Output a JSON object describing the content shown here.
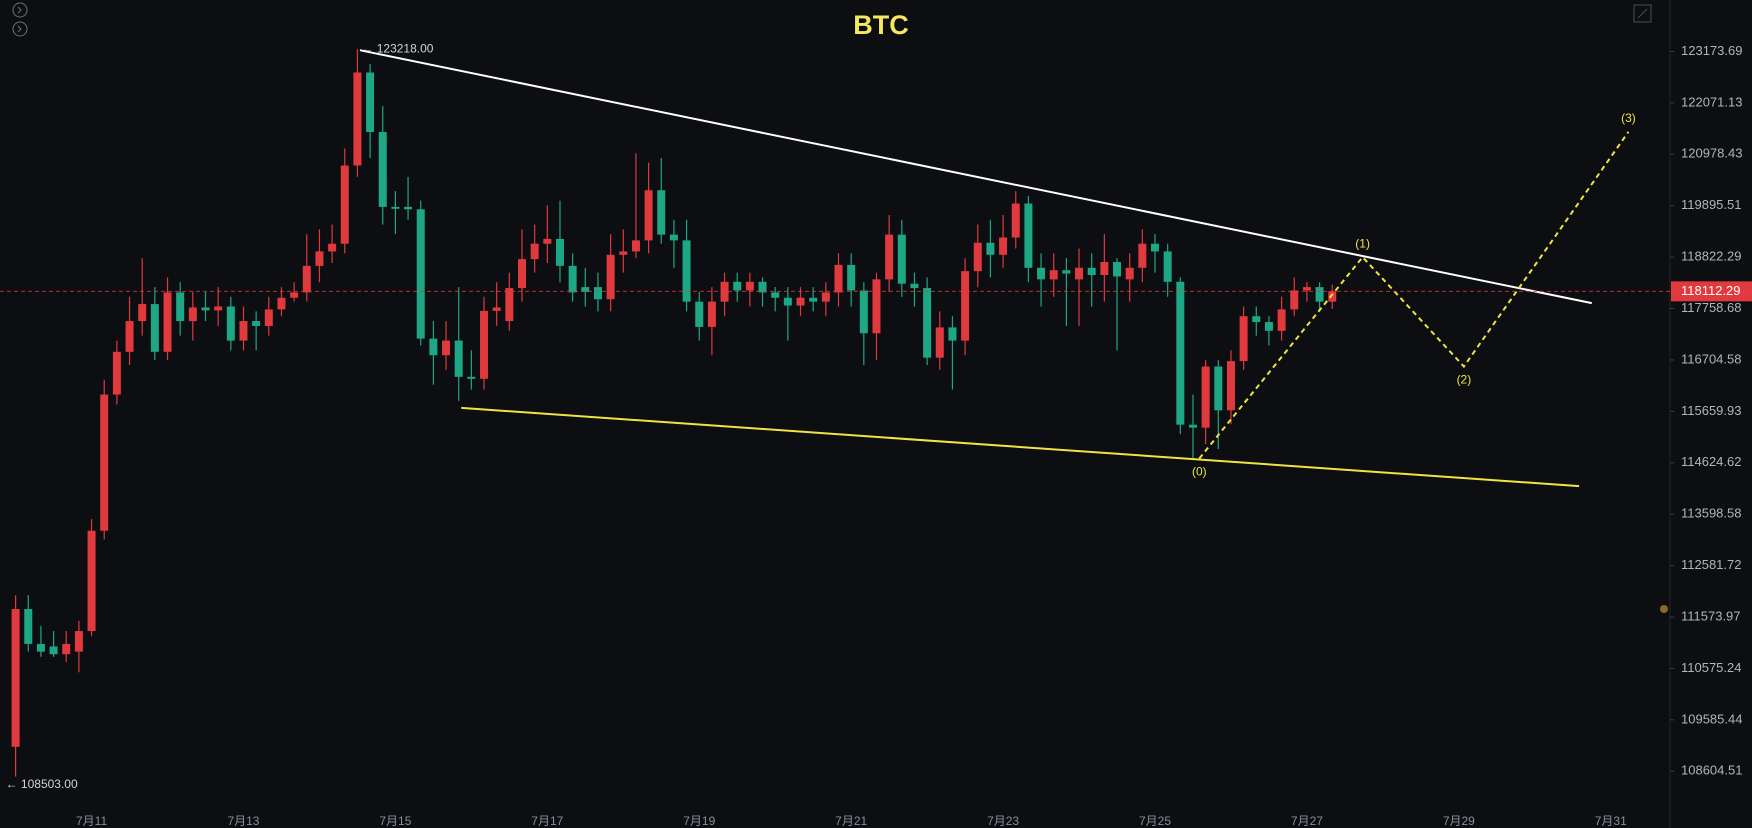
{
  "chart_data": {
    "type": "candlestick",
    "title": "BTC",
    "log_scale": true,
    "grid": false,
    "up_color": "#e0393e",
    "down_color": "#1ea784",
    "ylim": [
      107758,
      124286
    ],
    "yticks": [
      108604.51,
      109585.44,
      110575.24,
      111573.97,
      112581.72,
      113598.58,
      114624.62,
      115659.93,
      116704.58,
      117758.68,
      118822.29,
      119895.51,
      120978.43,
      122071.13,
      123173.69
    ],
    "categories": [
      null,
      null,
      null,
      null,
      null,
      null,
      "7月11",
      null,
      null,
      null,
      null,
      null,
      null,
      null,
      null,
      null,
      null,
      null,
      "7月13",
      null,
      null,
      null,
      null,
      null,
      null,
      null,
      null,
      null,
      null,
      null,
      "7月15",
      null,
      null,
      null,
      null,
      null,
      null,
      null,
      null,
      null,
      null,
      null,
      "7月17",
      null,
      null,
      null,
      null,
      null,
      null,
      null,
      null,
      null,
      null,
      null,
      "7月19",
      null,
      null,
      null,
      null,
      null,
      null,
      null,
      null,
      null,
      null,
      null,
      "7月21",
      null,
      null,
      null,
      null,
      null,
      null,
      null,
      null,
      null,
      null,
      null,
      "7月23",
      null,
      null,
      null,
      null,
      null,
      null,
      null,
      null,
      null,
      null,
      null,
      "7月25",
      null,
      null,
      null,
      null,
      null,
      null,
      null,
      null,
      null,
      null,
      null,
      "7月27",
      null,
      null,
      null,
      null,
      null,
      null,
      null,
      null,
      null,
      null,
      null,
      "7月29",
      null,
      null,
      null,
      null,
      null,
      null,
      null,
      null,
      null,
      null,
      null,
      "7月31",
      null,
      null,
      null,
      null
    ],
    "open": [
      109070,
      111730,
      111050,
      111000,
      110850,
      110900,
      111300,
      113270,
      116000,
      116870,
      117500,
      117850,
      116870,
      118090,
      117500,
      117780,
      117720,
      117800,
      117100,
      117500,
      117400,
      117740,
      117980,
      118090,
      118640,
      118940,
      119100,
      120740,
      122720,
      121450,
      119870,
      119870,
      119820,
      117140,
      116800,
      117100,
      116360,
      116320,
      117710,
      117500,
      118180,
      118780,
      119100,
      119200,
      118640,
      118200,
      118200,
      117950,
      118870,
      118940,
      119170,
      120220,
      119290,
      119170,
      117900,
      117380,
      117900,
      118310,
      118130,
      118310,
      118090,
      117980,
      117820,
      117980,
      117900,
      118090,
      118660,
      118130,
      117250,
      118360,
      119290,
      118270,
      118180,
      116750,
      117370,
      117100,
      118530,
      119120,
      118870,
      119230,
      119940,
      118600,
      118360,
      118550,
      118360,
      118600,
      118450,
      118720,
      118360,
      118600,
      119100,
      118940,
      118310,
      115390,
      115330,
      116570,
      115680,
      116680,
      117600,
      117480,
      117300,
      117740,
      118130,
      118200,
      117900,
      null,
      null,
      null,
      null,
      null,
      null,
      null,
      null,
      null,
      null,
      null,
      null,
      null,
      null,
      null,
      null,
      null,
      null,
      null,
      null,
      null,
      null,
      null,
      null,
      null,
      null
    ],
    "high": [
      112000,
      112000,
      111400,
      111300,
      111300,
      111500,
      113500,
      116300,
      117100,
      118000,
      118800,
      118200,
      118400,
      118300,
      118100,
      118100,
      118200,
      118000,
      117800,
      117700,
      118000,
      118200,
      118300,
      119300,
      119400,
      119500,
      121100,
      123218,
      122900,
      122000,
      120200,
      120500,
      120000,
      117500,
      117500,
      118200,
      116900,
      118000,
      118300,
      118500,
      119400,
      119500,
      119900,
      120000,
      118900,
      118600,
      118500,
      119300,
      119400,
      121000,
      120800,
      120900,
      119600,
      119600,
      118100,
      118200,
      118500,
      118500,
      118500,
      118400,
      118200,
      118200,
      118200,
      118200,
      118300,
      118900,
      118900,
      118300,
      118500,
      119700,
      119600,
      118500,
      118400,
      117700,
      117600,
      118800,
      119500,
      119600,
      119700,
      120200,
      120100,
      118900,
      118900,
      118800,
      119000,
      118900,
      119300,
      118800,
      118900,
      119400,
      119300,
      119100,
      118400,
      116000,
      116700,
      116700,
      116900,
      117800,
      117800,
      117600,
      118000,
      118400,
      118300,
      118300,
      118250,
      null,
      null,
      null,
      null,
      null,
      null,
      null,
      null,
      null,
      null,
      null,
      null,
      null,
      null,
      null,
      null,
      null,
      null,
      null,
      null,
      null,
      null,
      null,
      null,
      null,
      null
    ],
    "low": [
      108503,
      110900,
      110800,
      110800,
      110700,
      110500,
      111200,
      113100,
      115800,
      116600,
      117200,
      116700,
      116700,
      117200,
      117100,
      117500,
      117400,
      116900,
      116900,
      116900,
      117200,
      117600,
      117900,
      117900,
      118300,
      118700,
      118900,
      120500,
      120900,
      119500,
      119300,
      119600,
      117000,
      116200,
      116500,
      115870,
      116100,
      116100,
      117400,
      117300,
      117900,
      118500,
      118700,
      118300,
      117900,
      117800,
      117700,
      117700,
      118500,
      118800,
      118900,
      119100,
      118600,
      117700,
      117100,
      116800,
      117600,
      117900,
      117800,
      117800,
      117700,
      117100,
      117600,
      117700,
      117600,
      117800,
      117800,
      116600,
      116700,
      118100,
      118000,
      117800,
      116600,
      116500,
      116100,
      116800,
      118200,
      118400,
      118600,
      119000,
      118300,
      117800,
      118000,
      117400,
      117400,
      117800,
      117900,
      116900,
      117900,
      118300,
      118500,
      118000,
      115200,
      114700,
      115000,
      114900,
      115400,
      116500,
      117200,
      117000,
      117100,
      117600,
      117900,
      117700,
      117750,
      null,
      null,
      null,
      null,
      null,
      null,
      null,
      null,
      null,
      null,
      null,
      null,
      null,
      null,
      null,
      null,
      null,
      null,
      null,
      null,
      null,
      null,
      null,
      null,
      null,
      null
    ],
    "close": [
      111730,
      111050,
      110900,
      110850,
      111050,
      111300,
      113270,
      116000,
      116870,
      117500,
      117850,
      116870,
      118090,
      117500,
      117780,
      117720,
      117800,
      117100,
      117500,
      117400,
      117740,
      117980,
      118090,
      118640,
      118940,
      119100,
      120740,
      122720,
      121450,
      119870,
      119830,
      119820,
      117140,
      116800,
      117100,
      116360,
      116320,
      117710,
      117780,
      118180,
      118780,
      119100,
      119200,
      118640,
      118090,
      118100,
      117950,
      118870,
      118940,
      119170,
      120220,
      119290,
      119170,
      117900,
      117380,
      117900,
      118310,
      118130,
      118310,
      118090,
      117980,
      117820,
      117980,
      117900,
      118090,
      118660,
      118130,
      117250,
      118360,
      119290,
      118270,
      118180,
      116750,
      117370,
      117100,
      118530,
      119120,
      118870,
      119230,
      119940,
      118600,
      118360,
      118550,
      118480,
      118600,
      118450,
      118720,
      118420,
      118600,
      119100,
      118940,
      118310,
      115390,
      115330,
      116570,
      115680,
      116680,
      117600,
      117480,
      117300,
      117740,
      118130,
      118200,
      117900,
      118112.29,
      null,
      null,
      null,
      null,
      null,
      null,
      null,
      null,
      null,
      null,
      null,
      null,
      null,
      null,
      null,
      null,
      null,
      null,
      null,
      null,
      null,
      null,
      null,
      null,
      null,
      null
    ],
    "high_label": "← 123218.00",
    "low_label": "← 108503.00",
    "last_price": 118112.29,
    "trendlines": [
      {
        "color": "#ffffff",
        "points": [
          [
            27.2,
            123200
          ],
          [
            124.5,
            117870
          ]
        ]
      },
      {
        "color": "#f0e442",
        "points": [
          [
            35.2,
            115730
          ],
          [
            123.5,
            114157
          ]
        ]
      }
    ],
    "wave": {
      "color": "#f0e442",
      "dashed": true,
      "points": [
        [
          93.5,
          114710
        ],
        [
          106.4,
          118822
        ],
        [
          114.4,
          116570
        ],
        [
          127.4,
          121454
        ]
      ],
      "labels": [
        "(0)",
        "(1)",
        "(2)",
        "(3)"
      ]
    }
  }
}
